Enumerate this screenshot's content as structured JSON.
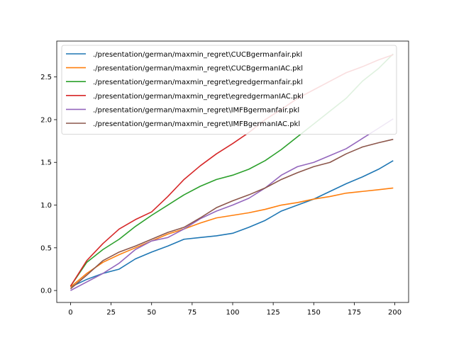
{
  "chart_data": {
    "type": "line",
    "title": "",
    "xlabel": "",
    "ylabel": "",
    "xlim": [
      -8.5,
      208.5
    ],
    "ylim": [
      -0.14,
      2.92
    ],
    "xticks": [
      0,
      25,
      50,
      75,
      100,
      125,
      150,
      175,
      200
    ],
    "yticks": [
      0.0,
      0.5,
      1.0,
      1.5,
      2.0,
      2.5
    ],
    "ytick_labels": [
      "0.0",
      "0.5",
      "1.0",
      "1.5",
      "2.0",
      "2.5"
    ],
    "grid": false,
    "legend_position": "top-left",
    "series": [
      {
        "name": "./presentation/german/maxmin_regret\\CUCBgermanfair.pkl",
        "color": "#1f77b4",
        "x": [
          0,
          10,
          20,
          30,
          40,
          50,
          60,
          70,
          80,
          90,
          100,
          110,
          120,
          130,
          140,
          150,
          160,
          170,
          180,
          190,
          199
        ],
        "values": [
          0.04,
          0.13,
          0.2,
          0.25,
          0.37,
          0.45,
          0.52,
          0.6,
          0.62,
          0.64,
          0.67,
          0.74,
          0.82,
          0.93,
          1.0,
          1.07,
          1.16,
          1.25,
          1.33,
          1.42,
          1.52
        ]
      },
      {
        "name": "./presentation/german/maxmin_regret\\CUCBgermanIAC.pkl",
        "color": "#ff7f0e",
        "x": [
          0,
          10,
          20,
          30,
          40,
          50,
          60,
          70,
          80,
          90,
          100,
          110,
          120,
          130,
          140,
          150,
          160,
          170,
          180,
          190,
          199
        ],
        "values": [
          0.04,
          0.2,
          0.33,
          0.42,
          0.5,
          0.58,
          0.66,
          0.72,
          0.79,
          0.85,
          0.88,
          0.91,
          0.95,
          1.0,
          1.03,
          1.07,
          1.1,
          1.14,
          1.16,
          1.18,
          1.2
        ]
      },
      {
        "name": "./presentation/german/maxmin_regret\\egredgermanfair.pkl",
        "color": "#2ca02c",
        "x": [
          0,
          10,
          20,
          30,
          40,
          50,
          60,
          70,
          80,
          90,
          100,
          110,
          120,
          130,
          140,
          150,
          160,
          170,
          180,
          190,
          199
        ],
        "values": [
          0.05,
          0.33,
          0.48,
          0.6,
          0.75,
          0.88,
          1.0,
          1.12,
          1.22,
          1.3,
          1.35,
          1.42,
          1.52,
          1.65,
          1.8,
          1.95,
          2.1,
          2.25,
          2.45,
          2.6,
          2.77
        ]
      },
      {
        "name": "./presentation/german/maxmin_regret\\egredgermanIAC.pkl",
        "color": "#d62728",
        "x": [
          0,
          10,
          20,
          30,
          40,
          50,
          60,
          70,
          80,
          90,
          100,
          110,
          120,
          130,
          140,
          150,
          160,
          170,
          180,
          190,
          199
        ],
        "values": [
          0.05,
          0.35,
          0.55,
          0.72,
          0.83,
          0.92,
          1.1,
          1.3,
          1.46,
          1.6,
          1.72,
          1.85,
          2.0,
          2.12,
          2.25,
          2.35,
          2.45,
          2.55,
          2.62,
          2.7,
          2.76
        ]
      },
      {
        "name": "./presentation/german/maxmin_regret\\IMFBgermanfair.pkl",
        "color": "#9467bd",
        "x": [
          0,
          10,
          20,
          30,
          40,
          50,
          60,
          70,
          80,
          90,
          100,
          110,
          120,
          130,
          140,
          150,
          160,
          170,
          180,
          190,
          199
        ],
        "values": [
          0.0,
          0.1,
          0.2,
          0.32,
          0.48,
          0.58,
          0.62,
          0.72,
          0.84,
          0.93,
          1.0,
          1.08,
          1.2,
          1.35,
          1.45,
          1.5,
          1.58,
          1.66,
          1.78,
          1.9,
          2.01
        ]
      },
      {
        "name": "./presentation/german/maxmin_regret\\IMFBgermanIAC.pkl",
        "color": "#8c564b",
        "x": [
          0,
          10,
          20,
          30,
          40,
          50,
          60,
          70,
          80,
          90,
          100,
          110,
          120,
          130,
          140,
          150,
          160,
          170,
          180,
          190,
          199
        ],
        "values": [
          0.02,
          0.18,
          0.35,
          0.45,
          0.52,
          0.6,
          0.68,
          0.74,
          0.85,
          0.97,
          1.05,
          1.12,
          1.2,
          1.3,
          1.38,
          1.45,
          1.5,
          1.6,
          1.68,
          1.73,
          1.77
        ]
      }
    ]
  }
}
